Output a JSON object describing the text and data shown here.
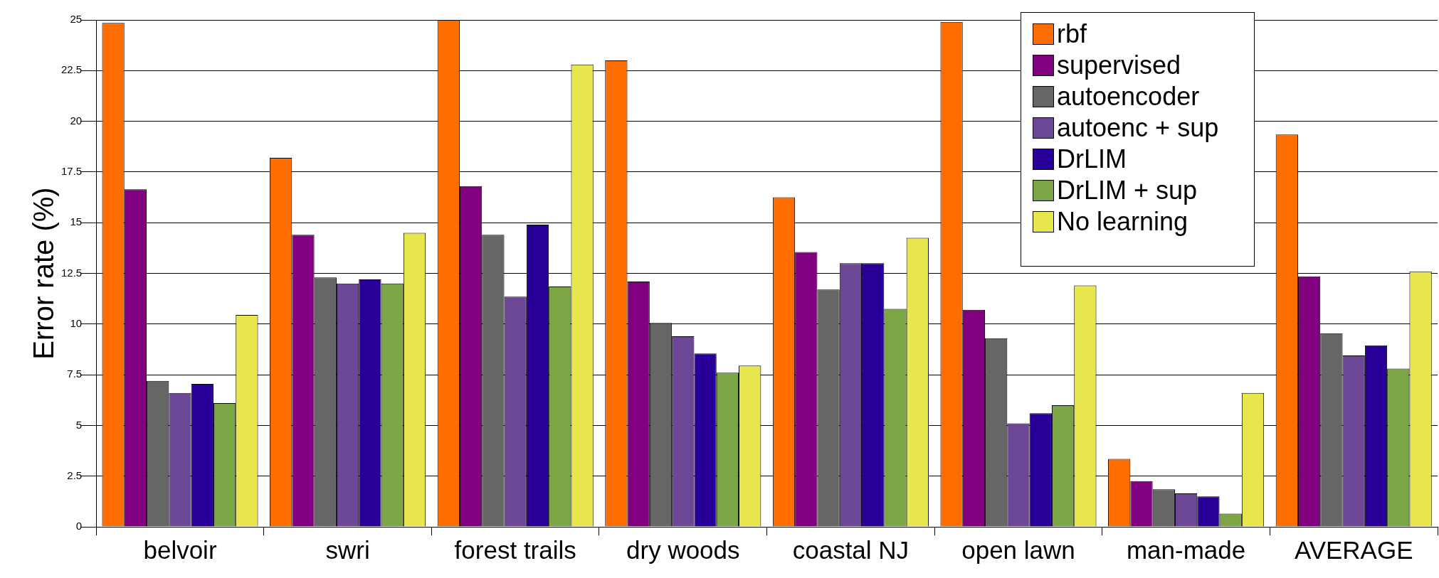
{
  "chart_data": {
    "type": "bar",
    "ylabel": "Error rate (%)",
    "categories": [
      "belvoir",
      "swri",
      "forest trails",
      "dry woods",
      "coastal NJ",
      "open lawn",
      "man-made",
      "AVERAGE"
    ],
    "series": [
      {
        "name": "rbf",
        "color": "#ff6d00",
        "values": [
          24.85,
          18.2,
          25.0,
          23.0,
          16.25,
          24.9,
          3.35,
          19.35
        ]
      },
      {
        "name": "supervised",
        "color": "#800080",
        "values": [
          16.65,
          14.4,
          16.8,
          12.1,
          13.55,
          10.7,
          2.25,
          12.35
        ]
      },
      {
        "name": "autoencoder",
        "color": "#666666",
        "values": [
          7.2,
          12.3,
          14.4,
          10.05,
          11.7,
          9.3,
          1.85,
          9.55
        ]
      },
      {
        "name": "autoenc + sup",
        "color": "#6b4795",
        "values": [
          6.6,
          12.0,
          11.35,
          9.4,
          13.0,
          5.1,
          1.65,
          8.45
        ]
      },
      {
        "name": "DrLIM",
        "color": "#280099",
        "values": [
          7.05,
          12.2,
          14.9,
          8.55,
          13.0,
          5.6,
          1.5,
          8.95
        ]
      },
      {
        "name": "DrLIM + sup",
        "color": "#7ca545",
        "values": [
          6.1,
          12.0,
          11.85,
          7.6,
          10.75,
          6.0,
          0.65,
          7.8
        ]
      },
      {
        "name": "No learning",
        "color": "#e7e64d",
        "values": [
          10.45,
          14.5,
          22.8,
          7.95,
          14.25,
          11.9,
          6.6,
          12.6
        ]
      }
    ],
    "ylim": [
      0,
      25
    ],
    "yticks": [
      0,
      2.5,
      5,
      7.5,
      10,
      12.5,
      15,
      17.5,
      20,
      22.5,
      25
    ],
    "grid": "y",
    "legend": "top right"
  }
}
